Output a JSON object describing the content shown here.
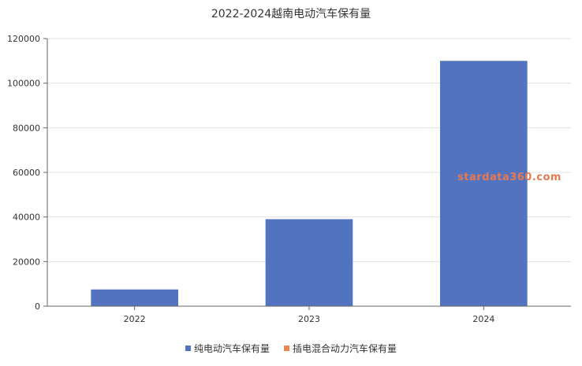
{
  "chart_data": {
    "type": "bar",
    "title": "2022-2024越南电动汽车保有量",
    "categories": [
      "2022",
      "2023",
      "2024"
    ],
    "series": [
      {
        "name": "纯电动汽车保有量",
        "values": [
          7500,
          39000,
          110000
        ],
        "color": "#5273c0"
      },
      {
        "name": "插电混合动力汽车保有量",
        "values": [
          0,
          0,
          0
        ],
        "color": "#e8884f"
      }
    ],
    "y_ticks": [
      0,
      20000,
      40000,
      60000,
      80000,
      100000,
      120000
    ],
    "ylim": [
      0,
      120000
    ],
    "grid": true,
    "legend_position": "bottom",
    "xlabel": "",
    "ylabel": ""
  },
  "watermark": "stardata360.com"
}
